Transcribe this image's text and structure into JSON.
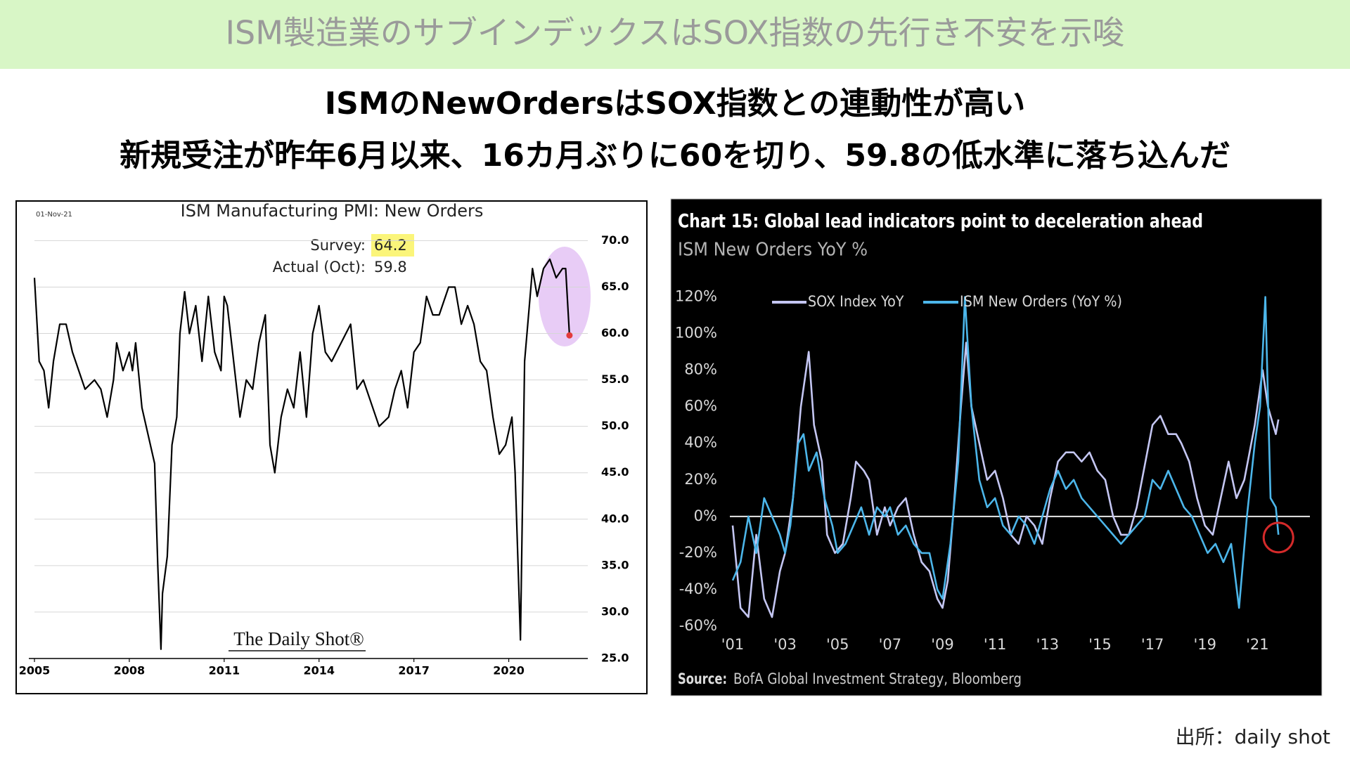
{
  "banner": "ISM製造業のサブインデックスはSOX指数の先行き不安を示唆",
  "headline": "ISMのNewOrdersはSOX指数との連動性が高い",
  "subheadline": "新規受注が昨年6月以来、16カ月ぶりに60を切り、59.8の低水準に落ち込んだ",
  "source_note": "出所：daily shot",
  "chart_data": [
    {
      "type": "line",
      "title": "ISM Manufacturing PMI: New Orders",
      "date": "01-Nov-21",
      "annotations": {
        "survey_label": "Survey:",
        "survey_value": 64.2,
        "actual_label": "Actual (Oct):",
        "actual_value": 59.8
      },
      "watermark": "The Daily Shot®",
      "xlim": [
        2005,
        2022.5
      ],
      "xticks": [
        2005,
        2008,
        2011,
        2014,
        2017,
        2020
      ],
      "ylim": [
        25,
        72
      ],
      "yticks": [
        {
          "value": 25,
          "label": "25.0"
        },
        {
          "value": 30,
          "label": "30.0"
        },
        {
          "value": 35,
          "label": "35.0"
        },
        {
          "value": 40,
          "label": "40.0"
        },
        {
          "value": 45,
          "label": "45.0"
        },
        {
          "value": 50,
          "label": "50.0"
        },
        {
          "value": 55,
          "label": "55.0"
        },
        {
          "value": 60,
          "label": "60.0"
        },
        {
          "value": 65,
          "label": "65.0"
        },
        {
          "value": 70,
          "label": "70.0"
        }
      ],
      "grid": true,
      "y_axis_side": "right",
      "background": "#ffffff",
      "series": [
        {
          "color": "#000000",
          "x": [
            2005.0,
            2005.15,
            2005.3,
            2005.45,
            2005.6,
            2005.8,
            2006.0,
            2006.2,
            2006.4,
            2006.6,
            2006.9,
            2007.1,
            2007.3,
            2007.5,
            2007.6,
            2007.8,
            2008.0,
            2008.1,
            2008.2,
            2008.4,
            2008.6,
            2008.8,
            2008.9,
            2009.0,
            2009.05,
            2009.2,
            2009.35,
            2009.5,
            2009.6,
            2009.75,
            2009.9,
            2010.1,
            2010.3,
            2010.5,
            2010.7,
            2010.9,
            2011.0,
            2011.1,
            2011.3,
            2011.5,
            2011.7,
            2011.9,
            2012.1,
            2012.3,
            2012.45,
            2012.6,
            2012.8,
            2013.0,
            2013.2,
            2013.4,
            2013.6,
            2013.8,
            2014.0,
            2014.2,
            2014.4,
            2014.7,
            2015.0,
            2015.2,
            2015.4,
            2015.7,
            2015.9,
            2016.2,
            2016.4,
            2016.6,
            2016.8,
            2017.0,
            2017.2,
            2017.4,
            2017.6,
            2017.8,
            2018.1,
            2018.3,
            2018.5,
            2018.7,
            2018.9,
            2019.1,
            2019.3,
            2019.5,
            2019.7,
            2019.9,
            2020.1,
            2020.2,
            2020.37,
            2020.5,
            2020.6,
            2020.75,
            2020.9,
            2021.1,
            2021.3,
            2021.5,
            2021.7,
            2021.8,
            2021.92
          ],
          "values": [
            66,
            57,
            56,
            52,
            57,
            61,
            61,
            58,
            56,
            54,
            55,
            54,
            51,
            55,
            59,
            56,
            58,
            56,
            59,
            52,
            49,
            46,
            35,
            26,
            32,
            36,
            48,
            51,
            60,
            64.5,
            60,
            63,
            57,
            64,
            58,
            56,
            64,
            63,
            57,
            51,
            55,
            54,
            59,
            62,
            48,
            45,
            51,
            54,
            52,
            58,
            51,
            60,
            63,
            58,
            57,
            59,
            61,
            54,
            55,
            52,
            50,
            51,
            54,
            56,
            52,
            58,
            59,
            64,
            62,
            62,
            65,
            65,
            61,
            63,
            61,
            57,
            56,
            51,
            47,
            48,
            51,
            45,
            27,
            57,
            61,
            67,
            64,
            67,
            68,
            66,
            67,
            67,
            59.8
          ]
        }
      ]
    },
    {
      "type": "line",
      "title": "Chart 15: Global lead indicators point to deceleration ahead",
      "subtitle": "ISM New Orders YoY %",
      "source_label": "Source:",
      "source": "BofA Global Investment Strategy, Bloomberg",
      "xlim": [
        2001,
        2023
      ],
      "xticks": [
        {
          "value": 2001,
          "label": "'01"
        },
        {
          "value": 2003,
          "label": "'03"
        },
        {
          "value": 2005,
          "label": "'05"
        },
        {
          "value": 2007,
          "label": "'07"
        },
        {
          "value": 2009,
          "label": "'09"
        },
        {
          "value": 2011,
          "label": "'11"
        },
        {
          "value": 2013,
          "label": "'13"
        },
        {
          "value": 2015,
          "label": "'15"
        },
        {
          "value": 2017,
          "label": "'17"
        },
        {
          "value": 2019,
          "label": "'19"
        },
        {
          "value": 2021,
          "label": "'21"
        }
      ],
      "ylim": [
        -60,
        120
      ],
      "yticks": [
        {
          "value": -60,
          "label": "-60%"
        },
        {
          "value": -40,
          "label": "-40%"
        },
        {
          "value": -20,
          "label": "-20%"
        },
        {
          "value": 0,
          "label": "0%"
        },
        {
          "value": 20,
          "label": "20%"
        },
        {
          "value": 40,
          "label": "40%"
        },
        {
          "value": 60,
          "label": "60%"
        },
        {
          "value": 80,
          "label": "80%"
        },
        {
          "value": 100,
          "label": "100%"
        },
        {
          "value": 120,
          "label": "120%"
        }
      ],
      "grid": false,
      "y_axis_side": "left",
      "background": "#000000",
      "series": [
        {
          "name": "SOX Index YoY",
          "color": "#c4c6f2",
          "x": [
            2001.0,
            2001.3,
            2001.6,
            2001.9,
            2002.2,
            2002.5,
            2002.8,
            2003.0,
            2003.3,
            2003.6,
            2003.9,
            2004.1,
            2004.4,
            2004.6,
            2004.9,
            2005.2,
            2005.5,
            2005.7,
            2006.0,
            2006.2,
            2006.5,
            2006.8,
            2007.0,
            2007.3,
            2007.6,
            2007.9,
            2008.2,
            2008.5,
            2008.8,
            2009.0,
            2009.2,
            2009.4,
            2009.7,
            2009.9,
            2010.1,
            2010.4,
            2010.7,
            2011.0,
            2011.3,
            2011.6,
            2011.9,
            2012.2,
            2012.5,
            2012.8,
            2013.1,
            2013.4,
            2013.7,
            2014.0,
            2014.3,
            2014.6,
            2014.9,
            2015.2,
            2015.5,
            2015.8,
            2016.1,
            2016.4,
            2016.8,
            2017.0,
            2017.3,
            2017.6,
            2017.9,
            2018.1,
            2018.4,
            2018.7,
            2019.0,
            2019.3,
            2019.6,
            2019.9,
            2020.2,
            2020.5,
            2020.9,
            2021.2,
            2021.4,
            2021.7,
            2021.8
          ],
          "values": [
            -5,
            -50,
            -55,
            -10,
            -45,
            -55,
            -30,
            -20,
            10,
            60,
            90,
            50,
            30,
            -10,
            -20,
            -15,
            10,
            30,
            25,
            20,
            -10,
            5,
            -5,
            5,
            10,
            -10,
            -25,
            -30,
            -45,
            -50,
            -35,
            0,
            60,
            95,
            60,
            40,
            20,
            25,
            10,
            -10,
            -15,
            0,
            -5,
            -15,
            10,
            30,
            35,
            35,
            30,
            35,
            25,
            20,
            0,
            -10,
            -10,
            5,
            35,
            50,
            55,
            45,
            45,
            40,
            30,
            10,
            -5,
            -10,
            10,
            30,
            10,
            20,
            50,
            80,
            60,
            45,
            53
          ]
        },
        {
          "name": "ISM New Orders (YoY %)",
          "color": "#4cb6ea",
          "x": [
            2001.0,
            2001.3,
            2001.6,
            2001.9,
            2002.2,
            2002.5,
            2002.8,
            2003.0,
            2003.2,
            2003.5,
            2003.7,
            2003.9,
            2004.2,
            2004.5,
            2004.8,
            2005.0,
            2005.3,
            2005.6,
            2005.9,
            2006.2,
            2006.5,
            2006.8,
            2007.0,
            2007.3,
            2007.6,
            2007.9,
            2008.2,
            2008.5,
            2008.8,
            2009.0,
            2009.3,
            2009.6,
            2009.85,
            2010.1,
            2010.4,
            2010.7,
            2011.0,
            2011.3,
            2011.6,
            2011.9,
            2012.2,
            2012.5,
            2012.8,
            2013.1,
            2013.4,
            2013.7,
            2014.0,
            2014.3,
            2014.6,
            2014.9,
            2015.2,
            2015.5,
            2015.8,
            2016.1,
            2016.4,
            2016.7,
            2017.0,
            2017.3,
            2017.6,
            2017.9,
            2018.2,
            2018.5,
            2018.8,
            2019.1,
            2019.4,
            2019.7,
            2020.0,
            2020.3,
            2020.6,
            2020.9,
            2021.1,
            2021.3,
            2021.5,
            2021.7,
            2021.8
          ],
          "values": [
            -35,
            -25,
            0,
            -20,
            10,
            0,
            -10,
            -20,
            -5,
            40,
            45,
            25,
            35,
            10,
            -5,
            -20,
            -15,
            -5,
            5,
            -10,
            5,
            0,
            5,
            -10,
            -5,
            -15,
            -20,
            -20,
            -40,
            -45,
            -15,
            30,
            120,
            60,
            20,
            5,
            10,
            -5,
            -10,
            0,
            -5,
            -15,
            0,
            15,
            25,
            15,
            20,
            10,
            5,
            0,
            -5,
            -10,
            -15,
            -10,
            -5,
            0,
            20,
            15,
            25,
            15,
            5,
            0,
            -10,
            -20,
            -15,
            -25,
            -15,
            -50,
            0,
            40,
            60,
            120,
            10,
            5,
            -10
          ]
        }
      ]
    }
  ]
}
